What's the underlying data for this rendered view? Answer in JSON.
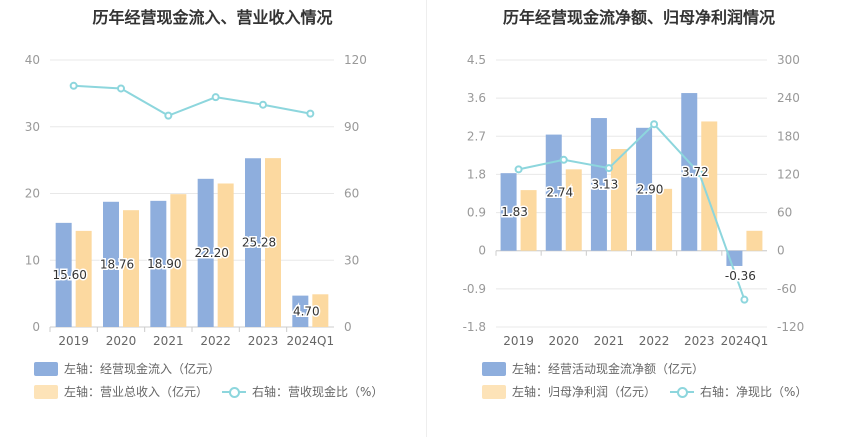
{
  "colors": {
    "primary": "#8eaedd",
    "secondary": "#fcd9a0",
    "line": "#8dd6dd",
    "grid": "#e8e8e8",
    "text": "#333333",
    "axis_text": "#999999"
  },
  "chart_data": [
    {
      "type": "bar",
      "title": "历年经营现金流入、营业收入情况",
      "categories": [
        "2019",
        "2020",
        "2021",
        "2022",
        "2023",
        "2024Q1"
      ],
      "left_axis": {
        "ticks": [
          "0",
          "10",
          "20",
          "30",
          "40"
        ],
        "range": [
          0,
          40
        ]
      },
      "right_axis": {
        "ticks": [
          "0",
          "30",
          "60",
          "90",
          "120"
        ],
        "range": [
          0,
          120
        ]
      },
      "series": [
        {
          "name": "左轴：经营现金流入（亿元）",
          "kind": "bar",
          "axis": "left",
          "values": [
            15.6,
            18.76,
            18.9,
            22.2,
            25.28,
            4.7
          ],
          "labels": [
            "15.60",
            "18.76",
            "18.90",
            "22.20",
            "25.28",
            "4.70"
          ]
        },
        {
          "name": "左轴：营业总收入（亿元）",
          "kind": "bar",
          "axis": "left",
          "values": [
            14.4,
            17.5,
            19.9,
            21.5,
            25.3,
            4.9
          ]
        },
        {
          "name": "右轴：营收现金比（%）",
          "kind": "line",
          "axis": "right",
          "values": [
            108.4,
            107.2,
            95.0,
            103.3,
            99.9,
            95.9
          ]
        }
      ],
      "legend": {
        "row1": [
          "左轴：经营现金流入（亿元）"
        ],
        "row2": [
          "左轴：营业总收入（亿元）",
          "右轴：营收现金比（%）"
        ]
      }
    },
    {
      "type": "bar",
      "title": "历年经营现金流净额、归母净利润情况",
      "categories": [
        "2019",
        "2020",
        "2021",
        "2022",
        "2023",
        "2024Q1"
      ],
      "left_axis": {
        "ticks": [
          "-1.8",
          "-0.9",
          "0",
          "0.9",
          "1.8",
          "2.7",
          "3.6",
          "4.5"
        ],
        "range": [
          -1.8,
          4.5
        ]
      },
      "right_axis": {
        "ticks": [
          "-120",
          "-60",
          "0",
          "60",
          "120",
          "180",
          "240",
          "300"
        ],
        "range": [
          -120,
          300
        ]
      },
      "series": [
        {
          "name": "左轴：经营活动现金流净额（亿元）",
          "kind": "bar",
          "axis": "left",
          "values": [
            1.83,
            2.74,
            3.13,
            2.9,
            3.72,
            -0.36
          ],
          "labels": [
            "1.83",
            "2.74",
            "3.13",
            "2.90",
            "3.72",
            "-0.36"
          ]
        },
        {
          "name": "左轴：归母净利润（亿元）",
          "kind": "bar",
          "axis": "left",
          "values": [
            1.43,
            1.92,
            2.4,
            1.46,
            3.05,
            0.47
          ]
        },
        {
          "name": "右轴：净现比（%）",
          "kind": "line",
          "axis": "right",
          "values": [
            128,
            143,
            130,
            199,
            122,
            -77
          ]
        }
      ],
      "legend": {
        "row1": [
          "左轴：经营活动现金流净额（亿元）"
        ],
        "row2": [
          "左轴：归母净利润（亿元）",
          "右轴：净现比（%）"
        ]
      }
    }
  ]
}
